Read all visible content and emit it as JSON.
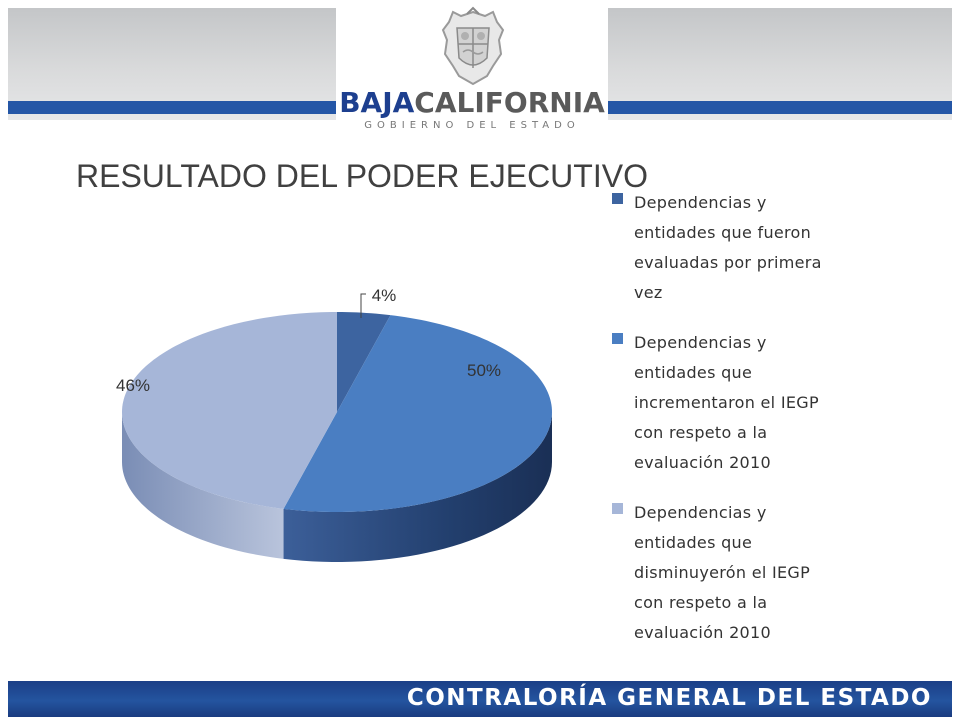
{
  "header": {
    "brand_part1": "BAJA",
    "brand_part2": "CALIFORNIA",
    "brand_subtitle": "GOBIERNO DEL ESTADO",
    "seal_icon": "state-coat-of-arms-icon"
  },
  "title": "RESULTADO DEL PODER EJECUTIVO",
  "chart_data": {
    "type": "pie",
    "title": "RESULTADO DEL PODER EJECUTIVO",
    "style": "3d",
    "legend_position": "right",
    "categories": [
      "Dependencias  y entidades que fueron evaluadas por primera vez",
      "Dependencias y entidades que incrementaron el IEGP con respeto a la evaluación 2010",
      "Dependencias y entidades que disminuyerón el IEGP con respeto a la evaluación 2010"
    ],
    "values": [
      4,
      50,
      46
    ],
    "labels": [
      "4%",
      "50%",
      "46%"
    ],
    "colors": [
      "#3d64a0",
      "#4a7ec2",
      "#a6b6d8"
    ]
  },
  "legend": [
    {
      "lines": [
        "Dependencias  y",
        "entidades que fueron",
        "evaluadas por primera",
        "vez"
      ]
    },
    {
      "lines": [
        "Dependencias y",
        "entidades que",
        "incrementaron el IEGP",
        "con respeto a la",
        "evaluación 2010"
      ]
    },
    {
      "lines": [
        "Dependencias y",
        "entidades que",
        "disminuyerón el IEGP",
        "con respeto a la",
        "evaluación 2010"
      ]
    }
  ],
  "footer": {
    "text": "CONTRALORÍA GENERAL DEL ESTADO"
  }
}
